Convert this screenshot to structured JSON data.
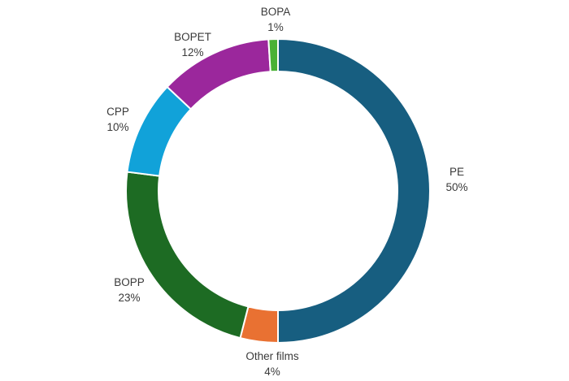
{
  "chart_data": {
    "type": "pie",
    "variant": "donut",
    "title": "",
    "slices": [
      {
        "name": "PE",
        "value": 50,
        "label": "50%",
        "color": "#175e80"
      },
      {
        "name": "Other films",
        "value": 4,
        "label": "4%",
        "color": "#e97132"
      },
      {
        "name": "BOPP",
        "value": 23,
        "label": "23%",
        "color": "#1d6b23"
      },
      {
        "name": "CPP",
        "value": 10,
        "label": "10%",
        "color": "#11a2d9"
      },
      {
        "name": "BOPET",
        "value": 12,
        "label": "12%",
        "color": "#9b279c"
      },
      {
        "name": "BOPA",
        "value": 1,
        "label": "1%",
        "color": "#4ab135"
      }
    ],
    "legend": "none",
    "data_labels": "outside"
  }
}
